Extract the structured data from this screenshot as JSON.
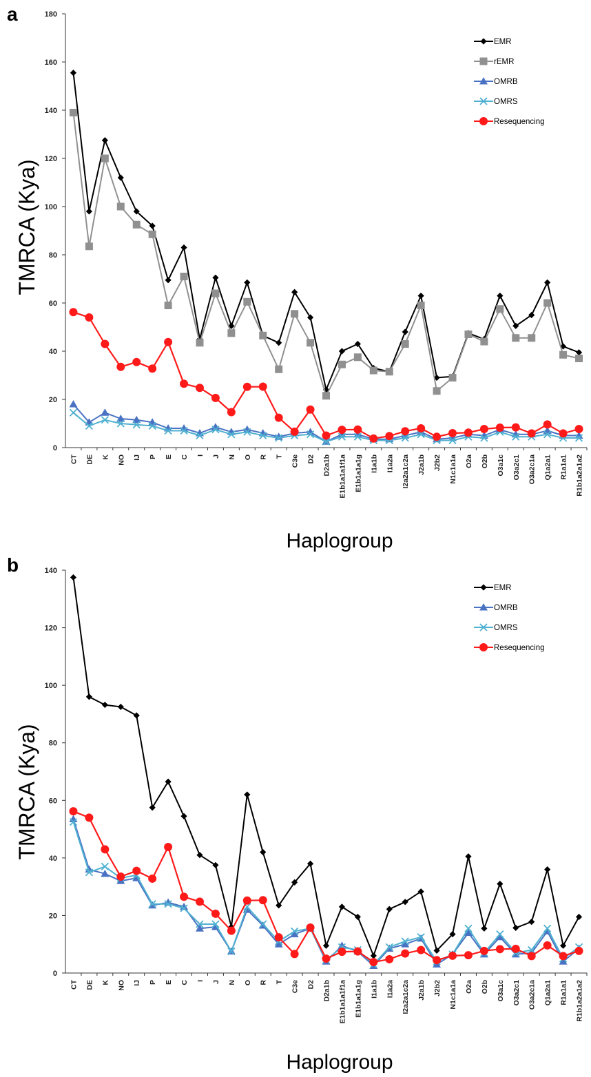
{
  "chart_data": [
    {
      "panel": "a",
      "type": "line",
      "ylabel": "TMRCA (Kya)",
      "xlabel": "Haplogroup",
      "ylim": [
        0,
        180
      ],
      "yticks": [
        0,
        20,
        40,
        60,
        80,
        100,
        120,
        140,
        160,
        180
      ],
      "grid": false,
      "legend_position": "top-right",
      "categories": [
        "CT",
        "DE",
        "K",
        "NO",
        "IJ",
        "P",
        "E",
        "C",
        "I",
        "J",
        "N",
        "O",
        "R",
        "T",
        "C3e",
        "D2",
        "D2a1b",
        "E1b1a1a1f1a",
        "E1b1a1a1g",
        "I1a1b",
        "I1a2a",
        "I2a2a1c2a",
        "J2a1b",
        "J2b2",
        "N1c1a1a",
        "O2a",
        "O2b",
        "O3a1c",
        "O3a2c1",
        "O3a2c1a",
        "Q1a2a1",
        "R1a1a1",
        "R1b1a2a1a2"
      ],
      "series": [
        {
          "name": "EMR",
          "color": "#000000",
          "marker": "diamond",
          "values": [
            155.5,
            98,
            127.5,
            112,
            98,
            92,
            69.5,
            83,
            45,
            70.5,
            50.5,
            68.5,
            46.5,
            43.5,
            64.5,
            54,
            24,
            40,
            43,
            33,
            31.5,
            48,
            63,
            29,
            29.5,
            47.5,
            45,
            63,
            50.5,
            55,
            68.5,
            42,
            39.5
          ]
        },
        {
          "name": "rEMR",
          "color": "#909090",
          "marker": "square",
          "values": [
            139,
            83.5,
            120,
            100,
            92.5,
            88.5,
            59,
            71,
            43.5,
            64,
            47.5,
            60.5,
            46.5,
            32.5,
            55.5,
            43.5,
            21.5,
            34.5,
            37.5,
            32,
            31.5,
            43,
            59,
            23.5,
            29,
            47,
            44,
            57.5,
            45.5,
            45.5,
            60,
            38.5,
            37
          ]
        },
        {
          "name": "OMRB",
          "color": "#4a72c4",
          "marker": "triangle",
          "values": [
            18,
            10.5,
            14.5,
            12,
            11.5,
            10.5,
            8,
            8,
            6,
            8.5,
            6.5,
            7.5,
            6,
            4.5,
            6,
            6.5,
            2.5,
            5.5,
            5.5,
            3.5,
            3.5,
            5,
            6.5,
            3.5,
            4,
            5.5,
            5,
            7.5,
            5.5,
            5.5,
            7,
            5,
            5
          ]
        },
        {
          "name": "OMRS",
          "color": "#4fb0d0",
          "marker": "x",
          "values": [
            14.5,
            9,
            11.5,
            10,
            9.5,
            9,
            7,
            7,
            5,
            7.5,
            5.5,
            6.5,
            5,
            4,
            5,
            5.5,
            2.5,
            4.5,
            4.5,
            3,
            3,
            4,
            5.5,
            3,
            3,
            4.5,
            4,
            6.5,
            4.5,
            4.5,
            5.5,
            4,
            4
          ]
        },
        {
          "name": "Resequencing",
          "color": "#ff1a1a",
          "marker": "circle",
          "values": [
            56.2,
            54,
            43,
            33.5,
            35.5,
            32.8,
            43.8,
            26.5,
            24.8,
            20.6,
            14.7,
            25.2,
            25.3,
            12.4,
            6.6,
            15.8,
            5,
            7.4,
            7.5,
            3.8,
            4.8,
            6.8,
            8,
            4.5,
            6,
            6.2,
            7.7,
            8.3,
            8.4,
            5.9,
            9.6,
            5.9,
            7.7
          ]
        }
      ]
    },
    {
      "panel": "b",
      "type": "line",
      "ylabel": "TMRCA (Kya)",
      "xlabel": "Haplogroup",
      "ylim": [
        0,
        140
      ],
      "yticks": [
        0,
        20,
        40,
        60,
        80,
        100,
        120,
        140
      ],
      "grid": false,
      "legend_position": "top-right",
      "categories": [
        "CT",
        "DE",
        "K",
        "NO",
        "IJ",
        "P",
        "E",
        "C",
        "I",
        "J",
        "N",
        "O",
        "R",
        "T",
        "C3e",
        "D2",
        "D2a1b",
        "E1b1a1a1f1a",
        "E1b1a1a1g",
        "I1a1b",
        "I1a2a",
        "I2a2a1c2a",
        "J2a1b",
        "J2b2",
        "N1c1a1a",
        "O2a",
        "O2b",
        "O3a1c",
        "O3a2c1",
        "O3a2c1a",
        "Q1a2a1",
        "R1a1a1",
        "R1b1a2a1a2"
      ],
      "series": [
        {
          "name": "EMR",
          "color": "#000000",
          "marker": "diamond",
          "values": [
            137.5,
            96,
            93.2,
            92.5,
            89.5,
            57.5,
            66.5,
            54.5,
            41,
            37.5,
            16,
            62,
            42,
            23.5,
            31.5,
            38,
            9.5,
            23,
            19.5,
            6,
            22.2,
            24.7,
            28.3,
            7.8,
            13.5,
            40.5,
            15.5,
            31,
            15.7,
            17.8,
            36,
            9.5,
            19.5
          ]
        },
        {
          "name": "OMRB",
          "color": "#4a72c4",
          "marker": "triangle",
          "values": [
            53.5,
            36,
            34.5,
            32,
            33,
            23.5,
            24.5,
            23,
            15.5,
            16,
            7.5,
            22,
            16.5,
            10,
            13.5,
            15.5,
            4,
            9.5,
            7.5,
            2.5,
            8.5,
            10,
            12,
            3,
            6.5,
            14,
            6.5,
            12.5,
            6.5,
            7,
            14.5,
            4,
            8.5
          ]
        },
        {
          "name": "OMRS",
          "color": "#4fb0d0",
          "marker": "x",
          "values": [
            52.5,
            35,
            37,
            33,
            34,
            24,
            24,
            22.5,
            17,
            17,
            7.5,
            23,
            17,
            11,
            14.5,
            15.5,
            4.5,
            9,
            8,
            3,
            9,
            11,
            12.5,
            4,
            6.5,
            15.5,
            7,
            13.5,
            7,
            8,
            15.5,
            5,
            9
          ]
        },
        {
          "name": "Resequencing",
          "color": "#ff1a1a",
          "marker": "circle",
          "values": [
            56.2,
            54,
            43,
            33.5,
            35.5,
            32.8,
            43.8,
            26.5,
            24.8,
            20.6,
            14.7,
            25.2,
            25.3,
            12.4,
            6.6,
            15.8,
            5,
            7.4,
            7.5,
            3.8,
            4.8,
            6.8,
            8,
            4.5,
            6,
            6.2,
            7.7,
            8.3,
            8.4,
            5.9,
            9.6,
            5.9,
            7.7
          ]
        }
      ]
    }
  ]
}
